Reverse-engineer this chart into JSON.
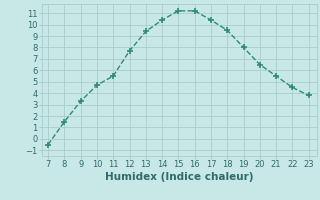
{
  "x": [
    7,
    8,
    9,
    10,
    11,
    12,
    13,
    14,
    15,
    16,
    17,
    18,
    19,
    20,
    21,
    22,
    23
  ],
  "y": [
    -0.5,
    1.5,
    3.3,
    4.7,
    5.5,
    7.7,
    9.4,
    10.4,
    11.2,
    11.2,
    10.4,
    9.5,
    8.0,
    6.5,
    5.5,
    4.5,
    3.8
  ],
  "xlabel": "Humidex (Indice chaleur)",
  "line_color": "#2e8b74",
  "bg_color": "#c8e8e8",
  "grid_color": "#a8cccc",
  "xlabel_fontsize": 7.5,
  "yticks": [
    -1,
    0,
    1,
    2,
    3,
    4,
    5,
    6,
    7,
    8,
    9,
    10,
    11
  ],
  "xticks": [
    7,
    8,
    9,
    10,
    11,
    12,
    13,
    14,
    15,
    16,
    17,
    18,
    19,
    20,
    21,
    22,
    23
  ],
  "ylim": [
    -1.5,
    11.8
  ],
  "xlim": [
    6.6,
    23.5
  ]
}
